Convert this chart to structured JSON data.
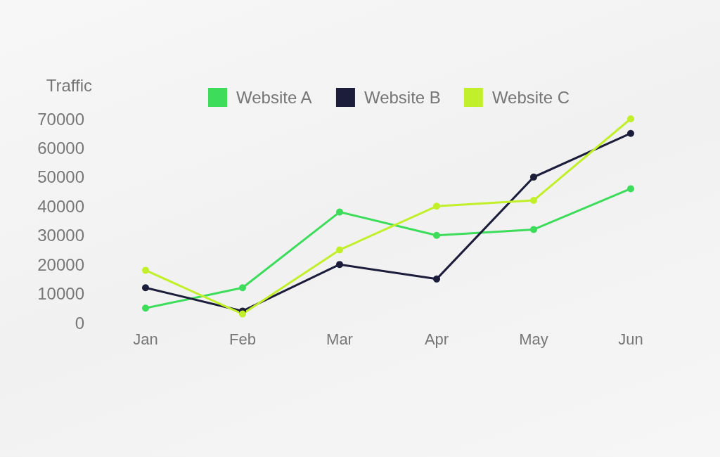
{
  "chart_data": {
    "type": "line",
    "ylabel": "Traffic",
    "categories": [
      "Jan",
      "Feb",
      "Mar",
      "Apr",
      "May",
      "Jun"
    ],
    "series": [
      {
        "name": "Website A",
        "color": "#3ddc5a",
        "values": [
          5000,
          12000,
          38000,
          30000,
          32000,
          46000
        ]
      },
      {
        "name": "Website B",
        "color": "#1c1d3b",
        "values": [
          12000,
          4000,
          20000,
          15000,
          50000,
          65000
        ]
      },
      {
        "name": "Website C",
        "color": "#c1f02b",
        "values": [
          18000,
          3000,
          25000,
          40000,
          42000,
          70000
        ]
      }
    ],
    "ylim": [
      0,
      70000
    ],
    "yticks": [
      0,
      10000,
      20000,
      30000,
      40000,
      50000,
      60000,
      70000
    ],
    "grid": false,
    "legend": "top",
    "marker": "circle",
    "line_style": "solid"
  }
}
